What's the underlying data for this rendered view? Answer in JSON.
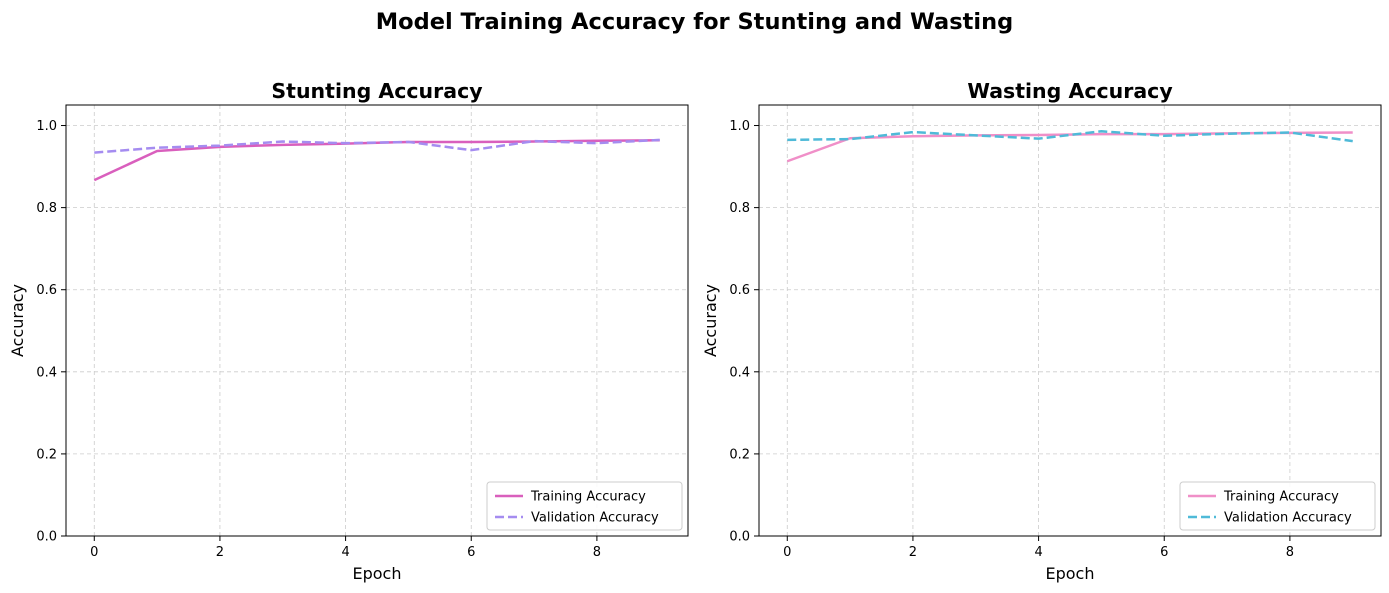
{
  "figure": {
    "title": "Model Training Accuracy for Stunting and Wasting"
  },
  "chart_data": [
    {
      "type": "line",
      "title": "Stunting Accuracy",
      "xlabel": "Epoch",
      "ylabel": "Accuracy",
      "xlim": [
        -0.45,
        9.45
      ],
      "ylim": [
        0,
        1.05
      ],
      "xticks": [
        0,
        2,
        4,
        6,
        8
      ],
      "xtick_labels": [
        "0",
        "2",
        "4",
        "6",
        "8"
      ],
      "yticks": [
        0,
        0.2,
        0.4,
        0.6,
        0.8,
        1.0
      ],
      "ytick_labels": [
        "0.0",
        "0.2",
        "0.4",
        "0.6",
        "0.8",
        "1.0"
      ],
      "grid": true,
      "legend_position": "lower-right",
      "x": [
        0,
        1,
        2,
        3,
        4,
        5,
        6,
        7,
        8,
        9
      ],
      "series": [
        {
          "name": "Training Accuracy",
          "color": "#d95fbd",
          "style": "solid",
          "values": [
            0.867,
            0.938,
            0.948,
            0.953,
            0.956,
            0.96,
            0.96,
            0.961,
            0.963,
            0.964
          ]
        },
        {
          "name": "Validation Accuracy",
          "color": "#a58cf0",
          "style": "dashed",
          "values": [
            0.934,
            0.946,
            0.951,
            0.961,
            0.957,
            0.96,
            0.94,
            0.962,
            0.957,
            0.965
          ]
        }
      ]
    },
    {
      "type": "line",
      "title": "Wasting Accuracy",
      "xlabel": "Epoch",
      "ylabel": "Accuracy",
      "xlim": [
        -0.45,
        9.45
      ],
      "ylim": [
        0,
        1.05
      ],
      "xticks": [
        0,
        2,
        4,
        6,
        8
      ],
      "xtick_labels": [
        "0",
        "2",
        "4",
        "6",
        "8"
      ],
      "yticks": [
        0,
        0.2,
        0.4,
        0.6,
        0.8,
        1.0
      ],
      "ytick_labels": [
        "0.0",
        "0.2",
        "0.4",
        "0.6",
        "0.8",
        "1.0"
      ],
      "grid": true,
      "legend_position": "lower-right",
      "x": [
        0,
        1,
        2,
        3,
        4,
        5,
        6,
        7,
        8,
        9
      ],
      "series": [
        {
          "name": "Training Accuracy",
          "color": "#f08fc8",
          "style": "solid",
          "values": [
            0.913,
            0.969,
            0.974,
            0.976,
            0.977,
            0.979,
            0.979,
            0.981,
            0.982,
            0.983
          ]
        },
        {
          "name": "Validation Accuracy",
          "color": "#4fbad8",
          "style": "dashed",
          "values": [
            0.965,
            0.967,
            0.984,
            0.976,
            0.968,
            0.986,
            0.975,
            0.98,
            0.983,
            0.962
          ]
        }
      ]
    }
  ]
}
